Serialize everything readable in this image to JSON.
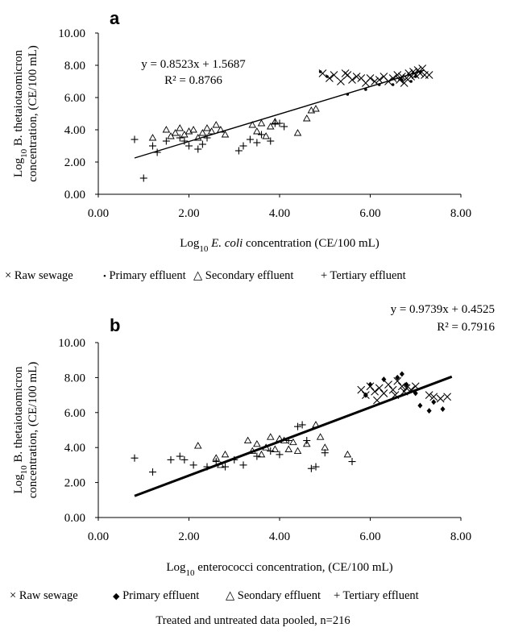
{
  "chart_data": [
    {
      "panel": "a",
      "type": "scatter",
      "xlabel": [
        "Log",
        "10",
        " ",
        "E. coli",
        " concentration (CE/100 mL)"
      ],
      "ylabel_line1": [
        "Log",
        "10",
        " ",
        "B. thetaiotaomicron"
      ],
      "ylabel_line2": "concentration, (CE/100 mL)",
      "xlim": [
        0,
        8
      ],
      "ylim": [
        0,
        10
      ],
      "xticks": [
        "0.00",
        "2.00",
        "4.00",
        "6.00",
        "8.00"
      ],
      "yticks": [
        "0.00",
        "2.00",
        "4.00",
        "6.00",
        "8.00",
        "10.00"
      ],
      "fit": {
        "slope": 0.8523,
        "intercept": 1.5687,
        "x_range": [
          0.8,
          7.2
        ],
        "equation": "y = 0.8523x + 1.5687",
        "r2": "R² = 0.8766"
      },
      "legend": [
        {
          "marker": "×",
          "label": "Raw sewage"
        },
        {
          "marker": "•",
          "label": "Primary effluent"
        },
        {
          "marker": "△",
          "label": "Secondary effluent"
        },
        {
          "marker": "+",
          "label": "Tertiary effluent"
        }
      ],
      "series": [
        {
          "name": "Raw sewage",
          "marker": "x",
          "points": [
            [
              4.95,
              7.5
            ],
            [
              5.1,
              7.2
            ],
            [
              5.2,
              7.4
            ],
            [
              5.35,
              7.0
            ],
            [
              5.45,
              7.5
            ],
            [
              5.5,
              7.4
            ],
            [
              5.6,
              7.1
            ],
            [
              5.7,
              7.3
            ],
            [
              5.8,
              7.2
            ],
            [
              5.9,
              6.9
            ],
            [
              6.0,
              7.2
            ],
            [
              6.1,
              7.0
            ],
            [
              6.2,
              7.1
            ],
            [
              6.3,
              7.3
            ],
            [
              6.4,
              7.0
            ],
            [
              6.5,
              7.2
            ],
            [
              6.6,
              7.4
            ],
            [
              6.65,
              7.1
            ],
            [
              6.7,
              7.3
            ],
            [
              6.75,
              6.9
            ],
            [
              6.8,
              7.2
            ],
            [
              6.85,
              7.5
            ],
            [
              6.9,
              7.3
            ],
            [
              6.95,
              7.6
            ],
            [
              7.0,
              7.4
            ],
            [
              7.05,
              7.7
            ],
            [
              7.1,
              7.5
            ],
            [
              7.15,
              7.8
            ],
            [
              7.2,
              7.4
            ],
            [
              7.3,
              7.4
            ]
          ]
        },
        {
          "name": "Primary effluent",
          "marker": "dot",
          "points": [
            [
              4.9,
              7.6
            ],
            [
              5.05,
              7.3
            ],
            [
              5.5,
              6.2
            ],
            [
              5.9,
              6.5
            ],
            [
              6.2,
              6.8
            ],
            [
              6.5,
              6.8
            ],
            [
              6.7,
              7.1
            ],
            [
              6.9,
              7.0
            ],
            [
              7.0,
              7.3
            ],
            [
              7.1,
              7.6
            ]
          ]
        },
        {
          "name": "Secondary effluent",
          "marker": "triangle",
          "points": [
            [
              1.2,
              3.5
            ],
            [
              1.5,
              4.0
            ],
            [
              1.6,
              3.6
            ],
            [
              1.7,
              3.8
            ],
            [
              1.8,
              4.1
            ],
            [
              1.9,
              3.7
            ],
            [
              2.0,
              3.9
            ],
            [
              2.1,
              4.0
            ],
            [
              2.2,
              3.5
            ],
            [
              2.3,
              3.8
            ],
            [
              2.4,
              4.1
            ],
            [
              2.5,
              3.9
            ],
            [
              2.6,
              4.3
            ],
            [
              2.7,
              4.0
            ],
            [
              2.8,
              3.7
            ],
            [
              3.4,
              4.3
            ],
            [
              3.5,
              3.9
            ],
            [
              3.6,
              4.4
            ],
            [
              3.7,
              3.6
            ],
            [
              3.8,
              4.2
            ],
            [
              3.9,
              4.5
            ],
            [
              4.4,
              3.8
            ],
            [
              4.6,
              4.7
            ],
            [
              4.7,
              5.2
            ],
            [
              4.8,
              5.3
            ]
          ]
        },
        {
          "name": "Tertiary effluent",
          "marker": "plus",
          "points": [
            [
              0.8,
              3.4
            ],
            [
              1.0,
              1.0
            ],
            [
              1.2,
              3.0
            ],
            [
              1.3,
              2.6
            ],
            [
              1.5,
              3.3
            ],
            [
              1.8,
              3.5
            ],
            [
              1.9,
              3.3
            ],
            [
              2.0,
              3.0
            ],
            [
              2.2,
              2.8
            ],
            [
              2.3,
              3.1
            ],
            [
              2.4,
              3.5
            ],
            [
              3.1,
              2.7
            ],
            [
              3.2,
              3.0
            ],
            [
              3.35,
              3.4
            ],
            [
              3.5,
              3.2
            ],
            [
              3.6,
              3.7
            ],
            [
              3.8,
              3.3
            ],
            [
              3.9,
              4.4
            ],
            [
              4.0,
              4.4
            ],
            [
              4.1,
              4.2
            ]
          ]
        }
      ]
    },
    {
      "panel": "b",
      "type": "scatter",
      "xlabel": [
        "Log",
        "10",
        "  enterococci concentration, (CE/100 mL)"
      ],
      "ylabel_line1": [
        "Log",
        "10",
        " ",
        "B. thetaiotaomicron"
      ],
      "ylabel_line2": "concentration, (CE/100 mL)",
      "xlim": [
        0,
        8
      ],
      "ylim": [
        0,
        10
      ],
      "xticks": [
        "0.00",
        "2.00",
        "4.00",
        "6.00",
        "8.00"
      ],
      "yticks": [
        "0.00",
        "2.00",
        "4.00",
        "6.00",
        "8.00",
        "10.00"
      ],
      "fit": {
        "slope": 0.9739,
        "intercept": 0.4525,
        "x_range": [
          0.8,
          7.8
        ],
        "equation": "y = 0.9739x + 0.4525",
        "r2": "R² = 0.7916"
      },
      "legend": [
        {
          "marker": "×",
          "label": "Raw sewage"
        },
        {
          "marker": "◆",
          "label": "Primary effluent"
        },
        {
          "marker": "△",
          "label": "Seondary effluent"
        },
        {
          "marker": "+",
          "label": "Tertiary effluent"
        }
      ],
      "series": [
        {
          "name": "Raw sewage",
          "marker": "x",
          "points": [
            [
              5.8,
              7.3
            ],
            [
              5.9,
              7.0
            ],
            [
              6.0,
              7.5
            ],
            [
              6.1,
              7.2
            ],
            [
              6.15,
              6.7
            ],
            [
              6.2,
              7.4
            ],
            [
              6.3,
              7.1
            ],
            [
              6.4,
              7.6
            ],
            [
              6.5,
              7.3
            ],
            [
              6.55,
              7.0
            ],
            [
              6.6,
              7.8
            ],
            [
              6.7,
              7.5
            ],
            [
              6.75,
              7.2
            ],
            [
              6.8,
              7.4
            ],
            [
              6.9,
              7.3
            ],
            [
              7.0,
              7.5
            ],
            [
              7.3,
              7.0
            ],
            [
              7.4,
              6.9
            ],
            [
              7.55,
              6.8
            ],
            [
              7.7,
              6.9
            ]
          ]
        },
        {
          "name": "Primary effluent",
          "marker": "diamond",
          "points": [
            [
              5.9,
              7.0
            ],
            [
              6.0,
              7.6
            ],
            [
              6.3,
              7.9
            ],
            [
              6.6,
              8.0
            ],
            [
              6.7,
              8.2
            ],
            [
              6.8,
              7.6
            ],
            [
              7.0,
              7.1
            ],
            [
              7.1,
              6.4
            ],
            [
              7.3,
              6.1
            ],
            [
              7.4,
              6.6
            ],
            [
              7.6,
              6.2
            ]
          ]
        },
        {
          "name": "Seondary effluent",
          "marker": "triangle",
          "points": [
            [
              2.2,
              4.1
            ],
            [
              2.6,
              3.4
            ],
            [
              2.7,
              3.0
            ],
            [
              2.8,
              3.6
            ],
            [
              3.3,
              4.4
            ],
            [
              3.4,
              3.8
            ],
            [
              3.5,
              4.2
            ],
            [
              3.6,
              3.6
            ],
            [
              3.7,
              4.0
            ],
            [
              3.8,
              4.6
            ],
            [
              3.9,
              3.9
            ],
            [
              4.0,
              4.5
            ],
            [
              4.1,
              4.4
            ],
            [
              4.2,
              3.9
            ],
            [
              4.3,
              4.3
            ],
            [
              4.4,
              3.8
            ],
            [
              4.6,
              4.2
            ],
            [
              4.8,
              5.3
            ],
            [
              4.9,
              4.6
            ],
            [
              5.0,
              4.0
            ],
            [
              5.5,
              3.6
            ]
          ]
        },
        {
          "name": "Tertiary effluent",
          "marker": "plus",
          "points": [
            [
              0.8,
              3.4
            ],
            [
              1.2,
              2.6
            ],
            [
              1.6,
              3.3
            ],
            [
              1.8,
              3.5
            ],
            [
              1.9,
              3.3
            ],
            [
              2.1,
              3.0
            ],
            [
              2.4,
              2.9
            ],
            [
              2.6,
              3.2
            ],
            [
              2.8,
              2.9
            ],
            [
              3.0,
              3.3
            ],
            [
              3.2,
              3.0
            ],
            [
              3.5,
              3.5
            ],
            [
              3.8,
              3.8
            ],
            [
              4.0,
              3.6
            ],
            [
              4.2,
              4.4
            ],
            [
              4.4,
              5.2
            ],
            [
              4.5,
              5.3
            ],
            [
              4.6,
              4.4
            ],
            [
              4.7,
              2.8
            ],
            [
              4.8,
              2.9
            ],
            [
              5.0,
              3.7
            ],
            [
              5.6,
              3.2
            ]
          ]
        }
      ]
    }
  ],
  "footnote": "Treated and untreated data pooled, n=216"
}
